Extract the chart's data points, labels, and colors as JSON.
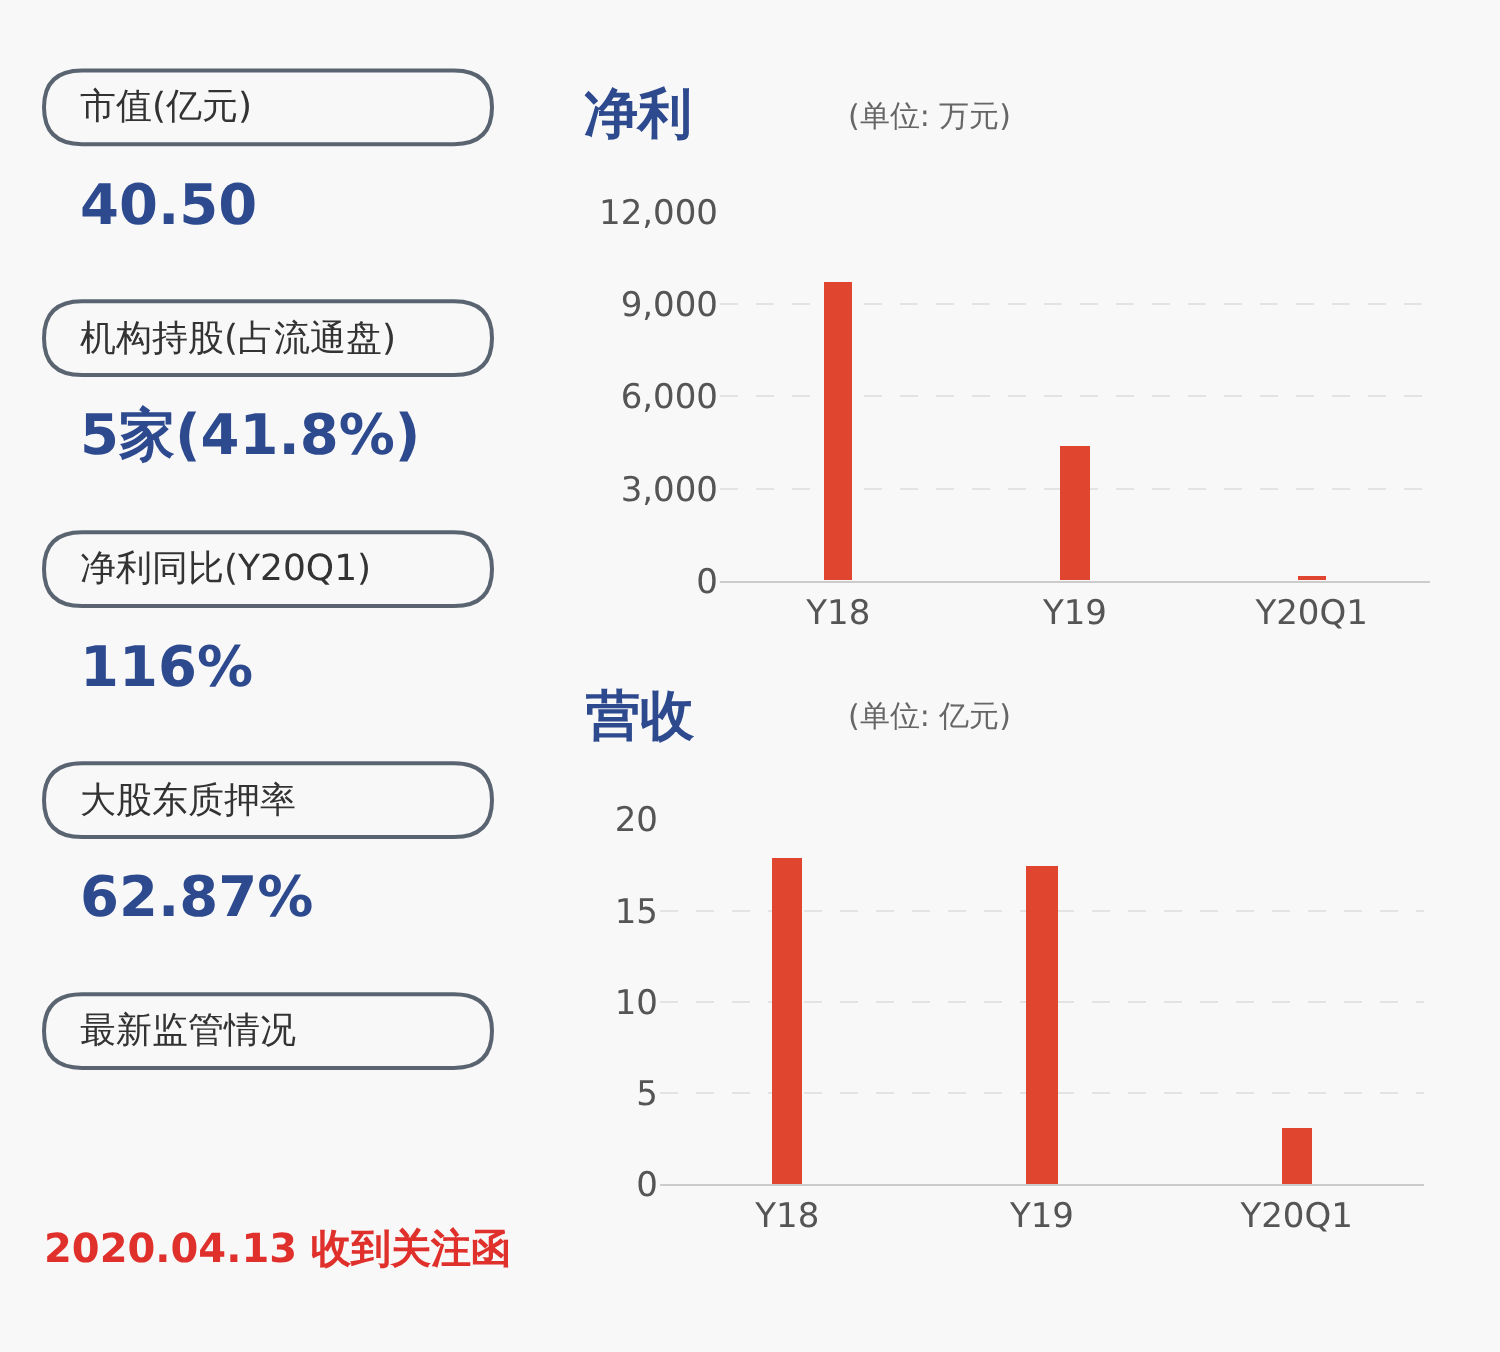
{
  "chart_data": [
    {
      "type": "other",
      "annotations": [
        "市值(亿元)",
        "40.50",
        "机构持股(占流通盘)",
        "5家(41.8%)",
        "净利同比(Y20Q1)",
        "116%",
        "大股东质押率",
        "62.87%",
        "最新监管情况",
        "2020.04.13 收到关注函"
      ]
    },
    {
      "type": "bar",
      "title": "净利",
      "subtitle": "(单位: 万元)",
      "categories": [
        "Y18",
        "Y19",
        "Y20Q1"
      ],
      "values": [
        9750,
        4360,
        130
      ],
      "color": "#e0452f",
      "ylim": [
        0,
        12000
      ],
      "yticks": [
        0,
        {
          "value": 3000,
          "label": "3,000"
        },
        {
          "value": 6000,
          "label": "6,000"
        },
        {
          "value": 9000,
          "label": "9,000"
        },
        {
          "value": 12000,
          "label": "12,000"
        }
      ],
      "grid": "y"
    },
    {
      "type": "bar",
      "title": "营收",
      "subtitle": "(单位: 亿元)",
      "categories": [
        "Y18",
        "Y19",
        "Y20Q1"
      ],
      "values": [
        17.9,
        17.5,
        3.1
      ],
      "color": "#e0452f",
      "ylim": [
        0,
        20
      ],
      "yticks": [
        0,
        5,
        10,
        15,
        20
      ],
      "grid": "y"
    }
  ]
}
